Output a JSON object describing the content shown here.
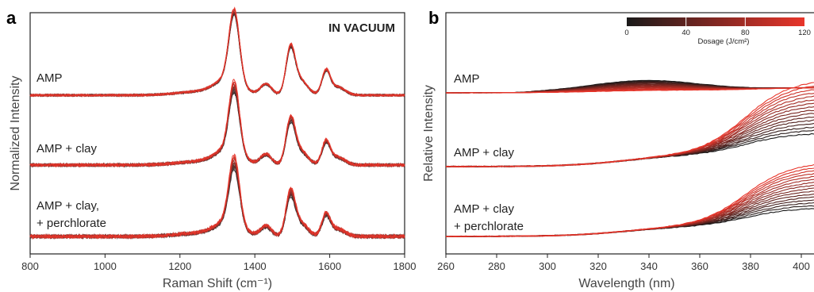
{
  "chart_data": [
    {
      "type": "line",
      "panel": "a",
      "annotation": "IN VACUUM",
      "xlabel": "Raman Shift (cm⁻¹)",
      "ylabel": "Normalized Intensity",
      "xlim": [
        800,
        1800
      ],
      "x_ticks": [
        "800",
        "1000",
        "1200",
        "1400",
        "1600",
        "1800"
      ],
      "y_ticks_shown": false,
      "peaks": [
        {
          "center": 1345,
          "width": 14,
          "height": 1.0
        },
        {
          "center": 1330,
          "width": 35,
          "height": 0.22
        },
        {
          "center": 1430,
          "width": 15,
          "height": 0.16
        },
        {
          "center": 1495,
          "width": 12,
          "height": 0.62
        },
        {
          "center": 1520,
          "width": 20,
          "height": 0.22
        },
        {
          "center": 1590,
          "width": 11,
          "height": 0.33
        },
        {
          "center": 1620,
          "width": 20,
          "height": 0.12
        },
        {
          "center": 1250,
          "width": 60,
          "height": 0.05
        }
      ],
      "series": [
        {
          "label": "AMP",
          "peak_scale": [
            0.92,
            1.0
          ],
          "noise": 0.03
        },
        {
          "label": "AMP + clay",
          "peak_scale": [
            0.85,
            1.0
          ],
          "noise": 0.04
        },
        {
          "label": "AMP + clay,",
          "label_line2": "+ perchlorate",
          "peak_scale": [
            0.82,
            1.0
          ],
          "noise": 0.05
        }
      ],
      "n_traces_per_series": 12
    },
    {
      "type": "line",
      "panel": "b",
      "xlabel": "Wavelength (nm)",
      "ylabel": "Relative Intensity",
      "xlim": [
        260,
        410
      ],
      "x_ticks": [
        "260",
        "280",
        "300",
        "320",
        "340",
        "360",
        "380",
        "400"
      ],
      "y_ticks_shown": false,
      "colorbar": {
        "title": "Dosage (J/cm²)",
        "range": [
          0,
          120
        ],
        "ticks": [
          "0",
          "40",
          "80",
          "120"
        ],
        "colors": [
          "#1a1a1a",
          "#e8352a"
        ]
      },
      "series": [
        {
          "label": "AMP",
          "trend": "hump at ~340 nm decreasing with dosage",
          "max_rise": 0.55
        },
        {
          "label": "AMP + clay",
          "trend": "absorption edge above 360 nm increasing with dosage",
          "max_rise": 1.05
        },
        {
          "label": "AMP + clay",
          "label_line2": "+ perchlorate",
          "trend": "absorption edge above 360 nm increasing with dosage",
          "max_rise": 0.95
        }
      ],
      "n_traces_per_series": 16
    }
  ]
}
